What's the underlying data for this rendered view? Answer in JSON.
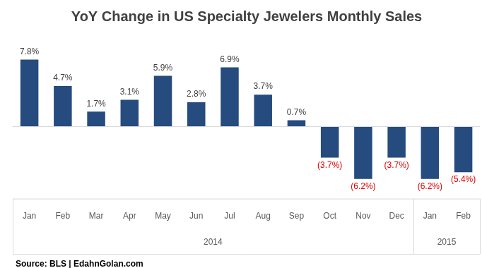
{
  "chart_data": {
    "type": "bar",
    "title": "YoY Change in US Specialty Jewelers Monthly Sales",
    "categories": [
      "Jan",
      "Feb",
      "Mar",
      "Apr",
      "May",
      "Jun",
      "Jul",
      "Aug",
      "Sep",
      "Oct",
      "Nov",
      "Dec",
      "Jan",
      "Feb"
    ],
    "category_groups": [
      "2014",
      "2014",
      "2014",
      "2014",
      "2014",
      "2014",
      "2014",
      "2014",
      "2014",
      "2014",
      "2014",
      "2014",
      "2015",
      "2015"
    ],
    "values": [
      7.8,
      4.7,
      1.7,
      3.1,
      5.9,
      2.8,
      6.9,
      3.7,
      0.7,
      -3.7,
      -6.2,
      -3.7,
      -6.2,
      -5.4
    ],
    "value_labels": [
      "7.8%",
      "4.7%",
      "1.7%",
      "3.1%",
      "5.9%",
      "2.8%",
      "6.9%",
      "3.7%",
      "0.7%",
      "(3.7%)",
      "(6.2%)",
      "(3.7%)",
      "(6.2%)",
      "(5.4%)"
    ],
    "color": "#254b7f",
    "data_labels": true,
    "grid": false,
    "tick_labels": "x",
    "source": "Source: BLS | EdahnGolan.com"
  }
}
